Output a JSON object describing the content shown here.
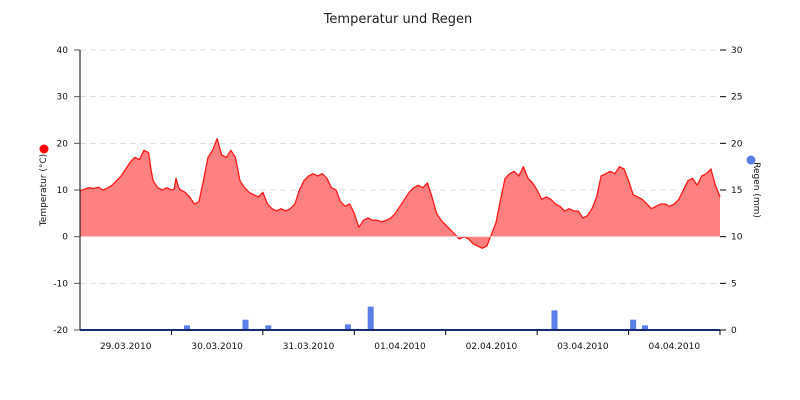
{
  "chart_data": {
    "type": "area+bar",
    "title": "Temperatur und Regen",
    "xlabel": "",
    "x_ticks": [
      "29.03.2010",
      "30.03.2010",
      "31.03.2010",
      "01.04.2010",
      "02.04.2010",
      "03.04.2010",
      "04.04.2010"
    ],
    "x_range_days": [
      0,
      7
    ],
    "left_axis": {
      "label": "Temperatur (°C)",
      "ylim": [
        -20,
        40
      ],
      "ticks": [
        40,
        30,
        20,
        10,
        0,
        -10,
        -20
      ],
      "legend_marker_color": "#ff0000"
    },
    "right_axis": {
      "label": "Regen (mm)",
      "ylim": [
        0,
        30
      ],
      "ticks": [
        30,
        25,
        20,
        15,
        10,
        5,
        0
      ],
      "legend_marker_color": "#5b7fe8"
    },
    "grid": "dashed horizontal",
    "series": [
      {
        "name": "Temperatur",
        "type": "area",
        "axis": "left",
        "line_color": "#ff1a1a",
        "fill_color": "#ff8080",
        "x_days": [
          0.0,
          0.05,
          0.1,
          0.15,
          0.2,
          0.25,
          0.3,
          0.35,
          0.4,
          0.45,
          0.5,
          0.55,
          0.6,
          0.65,
          0.7,
          0.75,
          0.78,
          0.8,
          0.85,
          0.9,
          0.95,
          1.0,
          1.03,
          1.05,
          1.08,
          1.1,
          1.15,
          1.2,
          1.25,
          1.3,
          1.35,
          1.4,
          1.45,
          1.5,
          1.55,
          1.6,
          1.65,
          1.7,
          1.75,
          1.8,
          1.85,
          1.9,
          1.95,
          2.0,
          2.05,
          2.1,
          2.15,
          2.2,
          2.25,
          2.3,
          2.35,
          2.4,
          2.45,
          2.5,
          2.55,
          2.6,
          2.65,
          2.7,
          2.75,
          2.8,
          2.85,
          2.9,
          2.95,
          3.0,
          3.05,
          3.1,
          3.15,
          3.2,
          3.25,
          3.3,
          3.35,
          3.4,
          3.45,
          3.5,
          3.55,
          3.6,
          3.65,
          3.7,
          3.75,
          3.8,
          3.85,
          3.9,
          3.95,
          4.0,
          4.05,
          4.1,
          4.15,
          4.2,
          4.25,
          4.3,
          4.35,
          4.4,
          4.45,
          4.5,
          4.55,
          4.6,
          4.65,
          4.7,
          4.75,
          4.8,
          4.85,
          4.9,
          4.95,
          5.0,
          5.05,
          5.1,
          5.15,
          5.2,
          5.25,
          5.3,
          5.35,
          5.4,
          5.45,
          5.5,
          5.55,
          5.6,
          5.65,
          5.7,
          5.75,
          5.8,
          5.85,
          5.9,
          5.95,
          6.0,
          6.05,
          6.1,
          6.15,
          6.2,
          6.25,
          6.3,
          6.35,
          6.4,
          6.45,
          6.5,
          6.55,
          6.6,
          6.65,
          6.7,
          6.75,
          6.8,
          6.85,
          6.9,
          6.95,
          7.0
        ],
        "values": [
          9.8,
          10.2,
          10.5,
          10.3,
          10.6,
          10.0,
          10.4,
          11.0,
          12.0,
          13.0,
          14.5,
          16.0,
          17.0,
          16.5,
          18.5,
          18.0,
          14.0,
          12.0,
          10.5,
          10.0,
          10.5,
          10.0,
          10.2,
          12.5,
          10.5,
          10.0,
          9.5,
          8.5,
          7.0,
          7.5,
          12.0,
          17.0,
          18.5,
          21.0,
          17.5,
          17.0,
          18.5,
          17.0,
          12.0,
          10.5,
          9.5,
          9.0,
          8.5,
          9.5,
          7.0,
          6.0,
          5.5,
          6.0,
          5.5,
          6.0,
          7.0,
          10.0,
          12.0,
          13.0,
          13.5,
          13.0,
          13.5,
          12.5,
          10.5,
          10.0,
          7.5,
          6.5,
          7.0,
          5.0,
          2.0,
          3.5,
          4.0,
          3.5,
          3.5,
          3.2,
          3.5,
          4.0,
          5.0,
          6.5,
          8.0,
          9.5,
          10.5,
          11.0,
          10.5,
          11.5,
          8.5,
          5.0,
          3.5,
          2.5,
          1.5,
          0.5,
          -0.5,
          0.0,
          -0.5,
          -1.5,
          -2.0,
          -2.5,
          -2.0,
          0.5,
          3.0,
          8.0,
          12.5,
          13.5,
          14.0,
          13.0,
          15.0,
          12.5,
          11.5,
          10.0,
          8.0,
          8.5,
          8.0,
          7.0,
          6.5,
          5.5,
          6.0,
          5.5,
          5.5,
          4.0,
          4.5,
          6.0,
          8.5,
          13.0,
          13.5,
          14.0,
          13.5,
          15.0,
          14.5,
          12.0,
          9.0,
          8.5,
          8.0,
          7.0,
          6.0,
          6.5,
          7.0,
          7.0,
          6.5,
          7.0,
          8.0,
          10.0,
          12.0,
          12.5,
          11.0,
          13.0,
          13.5,
          14.5,
          11.0,
          8.5,
          8.0,
          7.5,
          7.0
        ]
      },
      {
        "name": "Regen",
        "type": "bar",
        "axis": "right",
        "color": "#5b7fe8",
        "x_days": [
          1.17,
          1.81,
          2.06,
          2.93,
          3.18,
          5.19,
          6.05,
          6.18
        ],
        "values": [
          0.5,
          1.1,
          0.5,
          0.6,
          2.5,
          2.1,
          1.1,
          0.5
        ]
      }
    ]
  }
}
